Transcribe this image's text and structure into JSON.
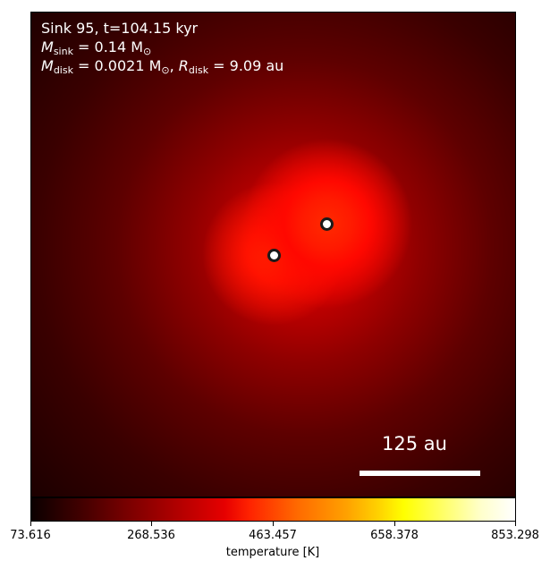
{
  "annotation": {
    "line1": "Sink 95, t=104.15 kyr",
    "line2_label": "M",
    "line2_sub": "sink",
    "line2_value": " = 0.14 M",
    "line2_unit_sub": "⊙",
    "line3_label": "M",
    "line3_sub": "disk",
    "line3_value": " = 0.0021 M",
    "line3_unit_sub": "⊙",
    "line3_sep": ", ",
    "line3_r_label": "R",
    "line3_r_sub": "disk",
    "line3_r_value": " = 9.09 au"
  },
  "scalebar": {
    "label": "125 au"
  },
  "colorbar": {
    "label": "temperature [K]",
    "ticks": [
      "73.616",
      "268.536",
      "463.457",
      "658.378",
      "853.298"
    ],
    "colormap": "hot"
  }
}
